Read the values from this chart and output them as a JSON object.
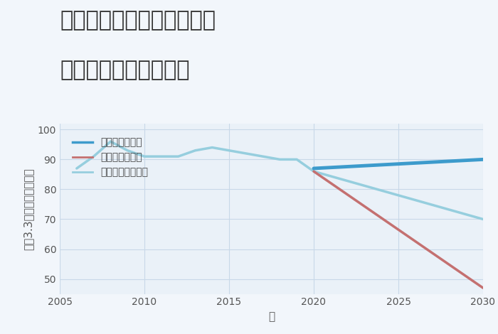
{
  "title_line1": "兵庫県姫路市安富町名坂の",
  "title_line2": "中古戸建ての価格推移",
  "xlabel": "年",
  "ylabel": "坪（3.3㎡）単価（万円）",
  "ylim": [
    45,
    102
  ],
  "yticks": [
    50,
    60,
    70,
    80,
    90,
    100
  ],
  "xlim": [
    2005,
    2030
  ],
  "xticks": [
    2005,
    2010,
    2015,
    2020,
    2025,
    2030
  ],
  "background_color": "#f2f6fb",
  "plot_bg_color": "#eaf1f8",
  "grid_color": "#c8d8e8",
  "good_scenario": {
    "label": "グッドシナリオ",
    "color": "#3d9bcc",
    "linewidth": 3.5,
    "x": [
      2020,
      2030
    ],
    "y": [
      87,
      90
    ]
  },
  "bad_scenario": {
    "label": "バッドシナリオ",
    "color": "#c47070",
    "linewidth": 2.5,
    "x": [
      2020,
      2030
    ],
    "y": [
      86,
      47
    ]
  },
  "normal_scenario": {
    "label": "ノーマルシナリオ",
    "color": "#96cede",
    "linewidth": 2.5,
    "x": [
      2006,
      2007,
      2008,
      2009,
      2010,
      2011,
      2012,
      2013,
      2014,
      2015,
      2016,
      2017,
      2018,
      2019,
      2020,
      2025,
      2030
    ],
    "y": [
      87,
      91,
      96,
      93,
      91,
      91,
      91,
      93,
      94,
      93,
      92,
      91,
      90,
      90,
      86,
      78,
      70
    ]
  },
  "legend_fontsize": 10,
  "title_fontsize": 22,
  "axis_label_fontsize": 11,
  "tick_fontsize": 10,
  "title_color": "#333333",
  "axis_color": "#555555"
}
